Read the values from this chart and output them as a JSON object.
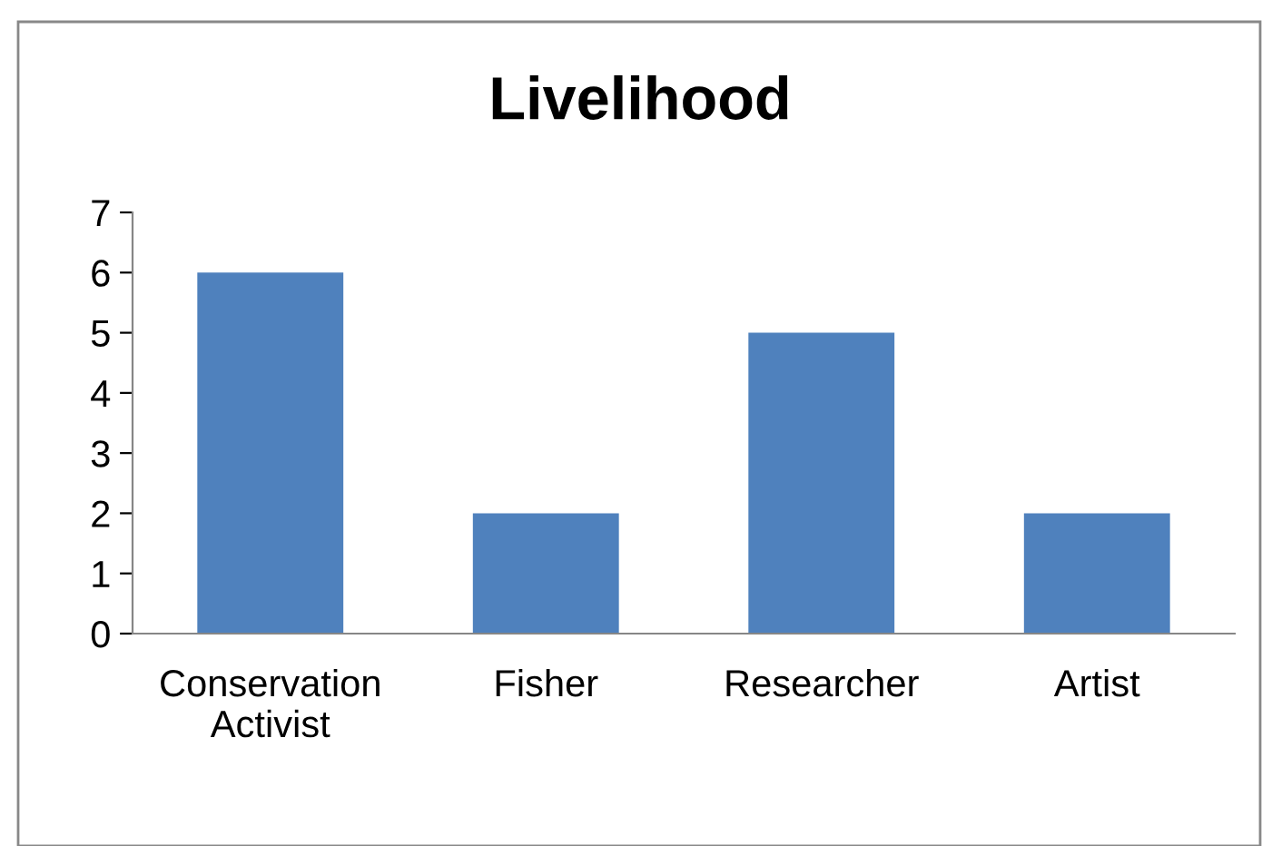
{
  "chart_data": {
    "type": "bar",
    "title": "Livelihood",
    "categories": [
      "Conservation\nActivist",
      "Fisher",
      "Researcher",
      "Artist"
    ],
    "values": [
      6,
      2,
      5,
      2
    ],
    "color": "#4f81bd",
    "ylim": [
      0,
      7
    ],
    "yticks": [
      0,
      1,
      2,
      3,
      4,
      5,
      6,
      7
    ],
    "grid": false,
    "legend": false
  }
}
